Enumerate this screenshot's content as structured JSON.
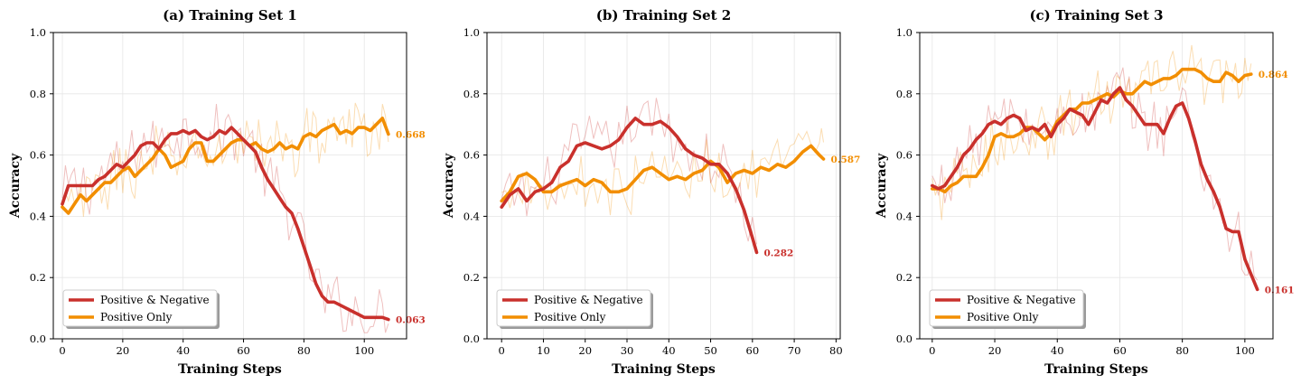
{
  "colors": {
    "pos_neg": "#c9302c",
    "pos_only": "#f28e00"
  },
  "legend": {
    "pos_neg": "Positive & Negative",
    "pos_only": "Positive Only",
    "location": "lower-left"
  },
  "chart_data": [
    {
      "type": "line",
      "title": "(a) Training Set 1",
      "xlabel": "Training Steps",
      "ylabel": "Accuracy",
      "xlim": [
        -3,
        114
      ],
      "ylim": [
        0,
        1
      ],
      "xticks": [
        "0",
        "20",
        "40",
        "60",
        "80",
        "100"
      ],
      "xtick_values": [
        0,
        20,
        40,
        60,
        80,
        100
      ],
      "yticks": [
        "0.0",
        "0.2",
        "0.4",
        "0.6",
        "0.8",
        "1.0"
      ],
      "ytick_values": [
        0,
        0.2,
        0.4,
        0.6,
        0.8,
        1.0
      ],
      "grid": true,
      "series": [
        {
          "name": "Positive & Negative",
          "color": "#c9302c",
          "end_label": "0.063",
          "x": [
            0,
            2,
            4,
            6,
            8,
            10,
            12,
            14,
            16,
            18,
            20,
            22,
            24,
            26,
            28,
            30,
            32,
            34,
            36,
            38,
            40,
            42,
            44,
            46,
            48,
            50,
            52,
            54,
            56,
            58,
            60,
            62,
            64,
            66,
            68,
            70,
            72,
            74,
            76,
            78,
            80,
            82,
            84,
            86,
            88,
            90,
            92,
            94,
            96,
            98,
            100,
            102,
            104,
            106,
            108
          ],
          "values": [
            0.44,
            0.5,
            0.5,
            0.5,
            0.5,
            0.5,
            0.52,
            0.53,
            0.55,
            0.57,
            0.56,
            0.58,
            0.6,
            0.63,
            0.64,
            0.64,
            0.62,
            0.65,
            0.67,
            0.67,
            0.68,
            0.67,
            0.68,
            0.66,
            0.65,
            0.66,
            0.68,
            0.67,
            0.69,
            0.67,
            0.65,
            0.63,
            0.61,
            0.56,
            0.52,
            0.49,
            0.46,
            0.43,
            0.41,
            0.36,
            0.3,
            0.24,
            0.18,
            0.14,
            0.12,
            0.12,
            0.11,
            0.1,
            0.09,
            0.08,
            0.07,
            0.07,
            0.07,
            0.07,
            0.063
          ]
        },
        {
          "name": "Positive Only",
          "color": "#f28e00",
          "end_label": "0.668",
          "x": [
            0,
            2,
            4,
            6,
            8,
            10,
            12,
            14,
            16,
            18,
            20,
            22,
            24,
            26,
            28,
            30,
            32,
            34,
            36,
            38,
            40,
            42,
            44,
            46,
            48,
            50,
            52,
            54,
            56,
            58,
            60,
            62,
            64,
            66,
            68,
            70,
            72,
            74,
            76,
            78,
            80,
            82,
            84,
            86,
            88,
            90,
            92,
            94,
            96,
            98,
            100,
            102,
            104,
            106,
            108
          ],
          "values": [
            0.43,
            0.41,
            0.44,
            0.47,
            0.45,
            0.47,
            0.49,
            0.51,
            0.51,
            0.53,
            0.55,
            0.56,
            0.53,
            0.55,
            0.57,
            0.59,
            0.62,
            0.6,
            0.56,
            0.57,
            0.58,
            0.62,
            0.64,
            0.64,
            0.58,
            0.58,
            0.6,
            0.62,
            0.64,
            0.65,
            0.65,
            0.63,
            0.64,
            0.62,
            0.61,
            0.62,
            0.64,
            0.62,
            0.63,
            0.62,
            0.66,
            0.67,
            0.66,
            0.68,
            0.69,
            0.7,
            0.67,
            0.68,
            0.67,
            0.69,
            0.69,
            0.68,
            0.7,
            0.72,
            0.668
          ]
        }
      ]
    },
    {
      "type": "line",
      "title": "(b) Training Set 2",
      "xlabel": "Training Steps",
      "ylabel": "Accuracy",
      "xlim": [
        -3.5,
        81
      ],
      "ylim": [
        0,
        1
      ],
      "xticks": [
        "0",
        "10",
        "20",
        "30",
        "40",
        "50",
        "60",
        "70",
        "80"
      ],
      "xtick_values": [
        0,
        10,
        20,
        30,
        40,
        50,
        60,
        70,
        80
      ],
      "yticks": [
        "0.0",
        "0.2",
        "0.4",
        "0.6",
        "0.8",
        "1.0"
      ],
      "ytick_values": [
        0,
        0.2,
        0.4,
        0.6,
        0.8,
        1.0
      ],
      "grid": true,
      "series": [
        {
          "name": "Positive & Negative",
          "color": "#c9302c",
          "end_label": "0.282",
          "x": [
            0,
            2,
            4,
            6,
            8,
            10,
            12,
            14,
            16,
            18,
            20,
            22,
            24,
            26,
            28,
            30,
            32,
            34,
            36,
            38,
            40,
            42,
            44,
            46,
            48,
            50,
            52,
            54,
            56,
            58,
            60,
            61
          ],
          "values": [
            0.43,
            0.47,
            0.49,
            0.45,
            0.48,
            0.49,
            0.51,
            0.56,
            0.58,
            0.63,
            0.64,
            0.63,
            0.62,
            0.63,
            0.65,
            0.69,
            0.72,
            0.7,
            0.7,
            0.71,
            0.69,
            0.66,
            0.62,
            0.6,
            0.59,
            0.57,
            0.57,
            0.54,
            0.49,
            0.42,
            0.33,
            0.282
          ]
        },
        {
          "name": "Positive Only",
          "color": "#f28e00",
          "end_label": "0.587",
          "x": [
            0,
            2,
            4,
            6,
            8,
            10,
            12,
            14,
            16,
            18,
            20,
            22,
            24,
            26,
            28,
            30,
            32,
            34,
            36,
            38,
            40,
            42,
            44,
            46,
            48,
            50,
            52,
            54,
            56,
            58,
            60,
            62,
            64,
            66,
            68,
            70,
            72,
            74,
            76,
            77
          ],
          "values": [
            0.45,
            0.48,
            0.53,
            0.54,
            0.52,
            0.48,
            0.48,
            0.5,
            0.51,
            0.52,
            0.5,
            0.52,
            0.51,
            0.48,
            0.48,
            0.49,
            0.52,
            0.55,
            0.56,
            0.54,
            0.52,
            0.53,
            0.52,
            0.54,
            0.55,
            0.58,
            0.56,
            0.51,
            0.54,
            0.55,
            0.54,
            0.56,
            0.55,
            0.57,
            0.56,
            0.58,
            0.61,
            0.63,
            0.6,
            0.587
          ]
        }
      ]
    },
    {
      "type": "line",
      "title": "(c) Training Set 3",
      "xlabel": "Training Steps",
      "ylabel": "Accuracy",
      "xlim": [
        -4,
        109
      ],
      "ylim": [
        0,
        1
      ],
      "xticks": [
        "0",
        "20",
        "40",
        "60",
        "80",
        "100"
      ],
      "xtick_values": [
        0,
        20,
        40,
        60,
        80,
        100
      ],
      "yticks": [
        "0.0",
        "0.2",
        "0.4",
        "0.6",
        "0.8",
        "1.0"
      ],
      "ytick_values": [
        0,
        0.2,
        0.4,
        0.6,
        0.8,
        1.0
      ],
      "grid": true,
      "series": [
        {
          "name": "Positive & Negative",
          "color": "#c9302c",
          "end_label": "0.161",
          "x": [
            0,
            2,
            4,
            6,
            8,
            10,
            12,
            14,
            16,
            18,
            20,
            22,
            24,
            26,
            28,
            30,
            32,
            34,
            36,
            38,
            40,
            42,
            44,
            46,
            48,
            50,
            52,
            54,
            56,
            58,
            60,
            62,
            64,
            66,
            68,
            70,
            72,
            74,
            76,
            78,
            80,
            82,
            84,
            86,
            88,
            90,
            92,
            94,
            96,
            98,
            100,
            102,
            104
          ],
          "values": [
            0.5,
            0.49,
            0.5,
            0.53,
            0.56,
            0.6,
            0.62,
            0.65,
            0.67,
            0.7,
            0.71,
            0.7,
            0.72,
            0.73,
            0.72,
            0.68,
            0.69,
            0.68,
            0.7,
            0.66,
            0.7,
            0.72,
            0.75,
            0.74,
            0.73,
            0.7,
            0.74,
            0.78,
            0.77,
            0.8,
            0.82,
            0.78,
            0.76,
            0.73,
            0.7,
            0.7,
            0.7,
            0.67,
            0.72,
            0.76,
            0.77,
            0.72,
            0.65,
            0.57,
            0.52,
            0.48,
            0.43,
            0.36,
            0.35,
            0.35,
            0.26,
            0.21,
            0.161
          ]
        },
        {
          "name": "Positive Only",
          "color": "#f28e00",
          "end_label": "0.864",
          "x": [
            0,
            2,
            4,
            6,
            8,
            10,
            12,
            14,
            16,
            18,
            20,
            22,
            24,
            26,
            28,
            30,
            32,
            34,
            36,
            38,
            40,
            42,
            44,
            46,
            48,
            50,
            52,
            54,
            56,
            58,
            60,
            62,
            64,
            66,
            68,
            70,
            72,
            74,
            76,
            78,
            80,
            82,
            84,
            86,
            88,
            90,
            92,
            94,
            96,
            98,
            100,
            102
          ],
          "values": [
            0.49,
            0.49,
            0.48,
            0.5,
            0.51,
            0.53,
            0.53,
            0.53,
            0.56,
            0.6,
            0.66,
            0.67,
            0.66,
            0.66,
            0.67,
            0.69,
            0.69,
            0.67,
            0.65,
            0.67,
            0.71,
            0.73,
            0.75,
            0.75,
            0.77,
            0.77,
            0.78,
            0.79,
            0.8,
            0.79,
            0.81,
            0.8,
            0.8,
            0.82,
            0.84,
            0.83,
            0.84,
            0.85,
            0.85,
            0.86,
            0.88,
            0.88,
            0.88,
            0.87,
            0.85,
            0.84,
            0.84,
            0.87,
            0.86,
            0.84,
            0.86,
            0.864
          ]
        }
      ]
    }
  ]
}
